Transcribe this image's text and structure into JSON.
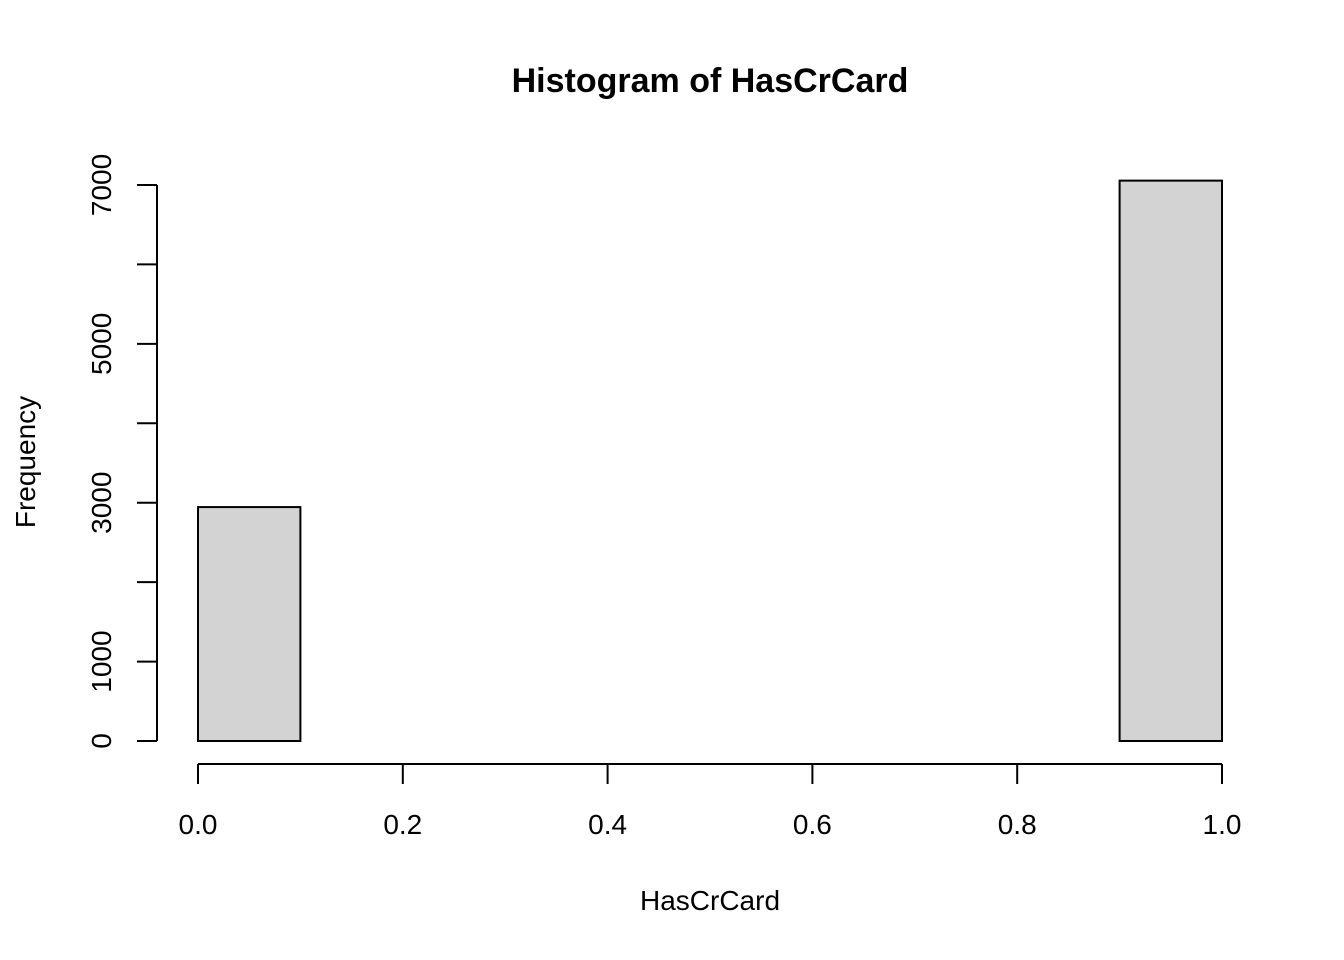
{
  "chart_data": {
    "type": "bar",
    "title": "Histogram of HasCrCard",
    "xlabel": "HasCrCard",
    "ylabel": "Frequency",
    "bins": [
      {
        "x0": 0.0,
        "x1": 0.1,
        "count": 2945
      },
      {
        "x0": 0.1,
        "x1": 0.2,
        "count": 0
      },
      {
        "x0": 0.2,
        "x1": 0.3,
        "count": 0
      },
      {
        "x0": 0.3,
        "x1": 0.4,
        "count": 0
      },
      {
        "x0": 0.4,
        "x1": 0.5,
        "count": 0
      },
      {
        "x0": 0.5,
        "x1": 0.6,
        "count": 0
      },
      {
        "x0": 0.6,
        "x1": 0.7,
        "count": 0
      },
      {
        "x0": 0.7,
        "x1": 0.8,
        "count": 0
      },
      {
        "x0": 0.8,
        "x1": 0.9,
        "count": 0
      },
      {
        "x0": 0.9,
        "x1": 1.0,
        "count": 7055
      }
    ],
    "xlim": [
      0,
      1
    ],
    "ylim": [
      0,
      7000
    ],
    "x_ticks": [
      0.0,
      0.2,
      0.4,
      0.6,
      0.8,
      1.0
    ],
    "x_tick_labels": [
      "0.0",
      "0.2",
      "0.4",
      "0.6",
      "0.8",
      "1.0"
    ],
    "y_ticks": [
      0,
      1000,
      2000,
      3000,
      4000,
      5000,
      6000,
      7000
    ],
    "y_tick_labels": [
      "0",
      "1000",
      "3000",
      "5000",
      "7000"
    ],
    "y_labeled_ticks": [
      0,
      1000,
      3000,
      5000,
      7000
    ],
    "grid": false,
    "colors": {
      "bar_fill": "#d3d3d3",
      "bar_stroke": "#000000",
      "background": "#ffffff"
    }
  }
}
